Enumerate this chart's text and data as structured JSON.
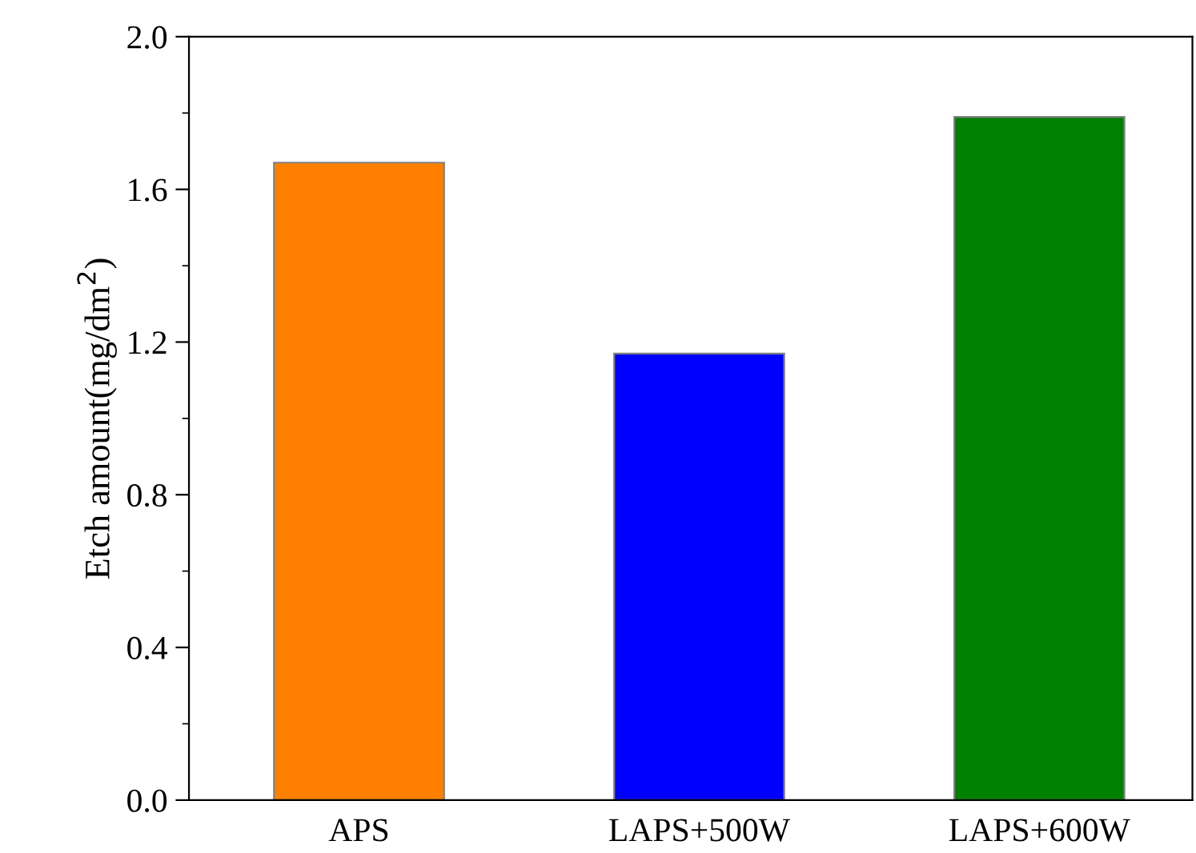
{
  "chart_data": {
    "type": "bar",
    "ylabel": "Etch amount(mg/dm$^{2}$)",
    "categories": [
      "APS",
      "LAPS+500W",
      "LAPS+600W"
    ],
    "values": [
      1.67,
      1.17,
      1.79
    ],
    "colors": [
      "#ff8000",
      "#0000ff",
      "#008000"
    ],
    "ylim": [
      0.0,
      2.0
    ],
    "yticks": [
      {
        "value": 0.0,
        "label": "0.0"
      },
      {
        "value": 0.4,
        "label": "0.4"
      },
      {
        "value": 0.8,
        "label": "0.8"
      },
      {
        "value": 1.2,
        "label": "1.2"
      },
      {
        "value": 1.6,
        "label": "1.6"
      },
      {
        "value": 2.0,
        "label": "2.0"
      }
    ],
    "grid": false
  }
}
